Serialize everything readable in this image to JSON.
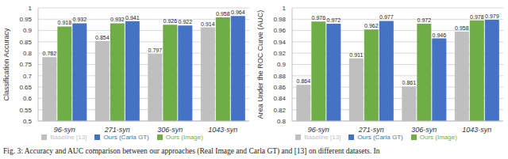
{
  "chart_data": [
    {
      "type": "bar",
      "categories": [
        "96-syn",
        "271-syn",
        "306-syn",
        "1043-syn"
      ],
      "y_label": "Classification Accuracy",
      "ylim": [
        0.5,
        1
      ],
      "yticks": [
        0.5,
        0.55,
        0.6,
        0.65,
        0.7,
        0.75,
        0.8,
        0.85,
        0.9,
        0.95,
        1
      ],
      "grid": true,
      "legend": "bottom",
      "data_labels": true,
      "series": [
        {
          "name": "Baseline [13]",
          "color": "#bfbfbf",
          "values": [
            0.782,
            0.854,
            0.797,
            0.914
          ]
        },
        {
          "name": "Ours (Image)",
          "color": "#70ad47",
          "values": [
            0.918,
            0.932,
            0.926,
            0.958
          ]
        },
        {
          "name": "Ours (Carla GT)",
          "color": "#4472c4",
          "values": [
            0.932,
            0.941,
            0.922,
            0.964
          ]
        }
      ]
    },
    {
      "type": "bar",
      "categories": [
        "96-syn",
        "271-syn",
        "306-syn",
        "1043-syn"
      ],
      "y_label": "Area Under the ROC Curve (AUC)",
      "ylim": [
        0.8,
        1
      ],
      "yticks": [
        0.8,
        0.82,
        0.84,
        0.86,
        0.88,
        0.9,
        0.92,
        0.94,
        0.96,
        0.98,
        1
      ],
      "grid": true,
      "legend": "bottom",
      "data_labels": true,
      "series": [
        {
          "name": "Baseline [13]",
          "color": "#bfbfbf",
          "values": [
            0.864,
            0.911,
            0.861,
            0.958
          ]
        },
        {
          "name": "Ours (Image)",
          "color": "#70ad47",
          "values": [
            0.976,
            0.962,
            0.972,
            0.978
          ]
        },
        {
          "name": "Ours (Carla GT)",
          "color": "#4472c4",
          "values": [
            0.972,
            0.977,
            0.946,
            0.979
          ]
        }
      ]
    }
  ],
  "caption": "Fig. 3: Accuracy and AUC comparison between our approaches (Real Image and Carla GT) and [13] on different datasets. In"
}
